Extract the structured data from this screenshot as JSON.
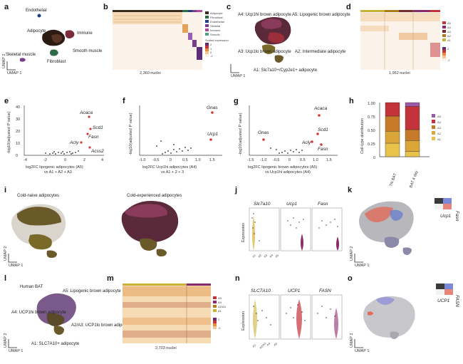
{
  "panels": {
    "a": {
      "letter": "a",
      "labels": [
        "Endothelial",
        "Adipocyte",
        "Immune",
        "Smooth muscle",
        "Skeletal muscle",
        "Fibroblast"
      ],
      "axis_x": "UMAP 1",
      "axis_y": "UMAP 2"
    },
    "b": {
      "letter": "b",
      "nuclei": "2,360 nuclei",
      "legend": [
        "Adipocyte",
        "Fibroblast",
        "Endothelial",
        "Skeletal",
        "Immune",
        "Smooth"
      ],
      "legend_colors": [
        "#3a2b1c",
        "#2e6b46",
        "#1f3f8a",
        "#7a3d8a",
        "#b14a9a",
        "#4aa37c"
      ],
      "scale_title": "Scaled expression",
      "scale_ticks": [
        "2",
        "1",
        "0",
        "-1",
        "-2"
      ]
    },
    "c": {
      "letter": "c",
      "labels": [
        "A4: Ucp1hi brown adipocyte",
        "A5: Lipogenic brown adipocyte",
        "A3: Ucp1lo brown adipocyte",
        "A2: Intermediate adipocyte",
        "A1: Slc7a10+/Cyp2e1+ adipocyte"
      ],
      "axis_x": "UMAP 1",
      "axis_y": "UMAP 2"
    },
    "d": {
      "letter": "d",
      "nuclei": "1,952 nuclei",
      "legend": [
        "A5",
        "A4",
        "A3",
        "A2",
        "A1"
      ],
      "legend_colors": [
        "#c4323a",
        "#8a2a6a",
        "#7a2b2b",
        "#b07a1a",
        "#c9b23a"
      ],
      "scale_title": "Scaled expression",
      "scale_ticks": [
        "2",
        "1",
        "0",
        "-1",
        "-2"
      ]
    },
    "e": {
      "letter": "e",
      "ylabel": "-log10(adjusted P value)",
      "xlabel_1": "log2FC lipogenic adipocytes (A5)",
      "xlabel_2": "vs A1 + A2 + A3",
      "genes": [
        "Acaca",
        "Scd1",
        "Fasn",
        "Acly",
        "Acss2"
      ],
      "yticks": [
        "0",
        "10",
        "20",
        "30",
        "40"
      ],
      "xticks": [
        "-4",
        "-2",
        "0",
        "2",
        "4"
      ]
    },
    "f": {
      "letter": "f",
      "ylabel": "-log10(adjusted P value)",
      "xlabel_1": "log2FC Ucp1hi adipocytes (A4)",
      "xlabel_2": "vs A1 + 2 + 3",
      "genes": [
        "Gnas",
        "Ucp1"
      ],
      "xticks": [
        "-1.0",
        "-0.5",
        "0",
        "0.5",
        "1.0",
        "1.5"
      ]
    },
    "g": {
      "letter": "g",
      "ylabel": "-log10(adjusted P value)",
      "xlabel_1": "log2FC lipogenic brown adipocytes (A5)",
      "xlabel_2": "vs Ucp1hi adipocytes (A4)",
      "genes": [
        "Acaca",
        "Gnas",
        "Scd1",
        "Acly",
        "Fasn"
      ],
      "xticks": [
        "-1.5",
        "-1.0",
        "-0.5",
        "0",
        "0.5",
        "1.0",
        "1.5"
      ]
    },
    "h": {
      "letter": "h",
      "ylabel": "Cell-type distribution",
      "categories": [
        "TN BAT",
        "BAT 4 day"
      ],
      "legend": [
        "A5",
        "A4",
        "A3",
        "A2",
        "A1"
      ],
      "yticks": [
        "1.00",
        "0.75",
        "0.50",
        "0.25",
        "0"
      ]
    },
    "i": {
      "letter": "i",
      "title_left": "Cold-naive adipocytes",
      "title_right": "Cold-experienced adipocytes",
      "axis_x": "UMAP 1",
      "axis_y": "UMAP 2"
    },
    "j": {
      "letter": "j",
      "genes": [
        "Slc7a10",
        "Ucp1",
        "Fasn"
      ],
      "ylabel": "Expression",
      "xcats": [
        "A1",
        "A2",
        "A3",
        "A4",
        "A5"
      ]
    },
    "k": {
      "letter": "k",
      "gene_x": "Ucp1",
      "gene_y": "Fasn",
      "axis_x": "UMAP 1",
      "axis_y": "UMAP 2"
    },
    "l": {
      "letter": "l",
      "title": "Human BAT",
      "labels": [
        "A4: UCP1hi brown adipocyte",
        "A5: Lipogenic brown adipocyte",
        "A2/A3: UCP1lo brown adipocyte",
        "A1: SLC7A10+ adipocyte"
      ],
      "axis_x": "UMAP 1",
      "axis_y": "UMAP 2"
    },
    "m": {
      "letter": "m",
      "nuclei": "2,703 nuclei",
      "legend": [
        "A5",
        "A4",
        "A2/A3",
        "A1"
      ],
      "legend_colors": [
        "#c4323a",
        "#8a2a6a",
        "#b07a1a",
        "#c9b23a"
      ],
      "scale_title": "Scaled expression",
      "scale_ticks": [
        "2",
        "1",
        "0",
        "-1",
        "-2"
      ]
    },
    "n": {
      "letter": "n",
      "genes": [
        "SLC7A10",
        "UCP1",
        "FASN"
      ],
      "ylabel": "Expression",
      "xcats": [
        "A1",
        "A2/A3",
        "A4",
        "A5"
      ]
    },
    "o": {
      "letter": "o",
      "gene_x": "UCP1",
      "gene_y": "FASN",
      "axis_x": "UMAP 1",
      "axis_y": "UMAP 2"
    }
  },
  "chart_data": [
    {
      "type": "bar",
      "title": "",
      "ylabel": "Cell-type distribution",
      "categories": [
        "TN BAT",
        "BAT 4 day"
      ],
      "ylim": [
        0,
        1
      ],
      "series": [
        {
          "name": "A1",
          "values": [
            0.25,
            0.1
          ]
        },
        {
          "name": "A2",
          "values": [
            0.22,
            0.2
          ]
        },
        {
          "name": "A3",
          "values": [
            0.28,
            0.2
          ]
        },
        {
          "name": "A4",
          "values": [
            0.25,
            0.43
          ]
        },
        {
          "name": "A5",
          "values": [
            0.0,
            0.07
          ]
        }
      ],
      "colors": [
        "#e8c24a",
        "#d9a637",
        "#c77a2a",
        "#c4323a",
        "#9b5aa8"
      ],
      "legend_position": "right"
    },
    {
      "type": "scatter",
      "ylabel": "-log10(adjusted P value)",
      "xlabel": "log2FC lipogenic adipocytes (A5) vs A1 + A2 + A3",
      "xlim": [
        -4,
        4
      ],
      "ylim": [
        0,
        40
      ],
      "highlight": [
        {
          "name": "Acaca",
          "x": 2.3,
          "y": 31
        },
        {
          "name": "Scd1",
          "x": 2.7,
          "y": 21
        },
        {
          "name": "Fasn",
          "x": 2.1,
          "y": 17
        },
        {
          "name": "Acly",
          "x": 1.2,
          "y": 10
        },
        {
          "name": "Acss2",
          "x": 2.4,
          "y": 5
        }
      ]
    },
    {
      "type": "scatter",
      "ylabel": "-log10(adjusted P value)",
      "xlabel": "log2FC Ucp1hi adipocytes (A4) vs A1 + 2 + 3",
      "xlim": [
        -1.2,
        1.8
      ],
      "highlight": [
        {
          "name": "Gnas",
          "x": 1.6,
          "y": 0.82
        },
        {
          "name": "Ucp1",
          "x": 1.55,
          "y": 0.35
        }
      ]
    },
    {
      "type": "scatter",
      "ylabel": "-log10(adjusted P value)",
      "xlabel": "log2FC lipogenic brown adipocytes (A5) vs Ucp1hi adipocytes (A4)",
      "xlim": [
        -1.7,
        1.7
      ],
      "highlight": [
        {
          "name": "Acaca",
          "x": 1.3,
          "y": 0.86
        },
        {
          "name": "Gnas",
          "x": -1.1,
          "y": 0.32
        },
        {
          "name": "Scd1",
          "x": 1.2,
          "y": 0.42
        },
        {
          "name": "Acly",
          "x": 0.9,
          "y": 0.3
        },
        {
          "name": "Fasn",
          "x": 1.4,
          "y": 0.22
        }
      ]
    }
  ]
}
